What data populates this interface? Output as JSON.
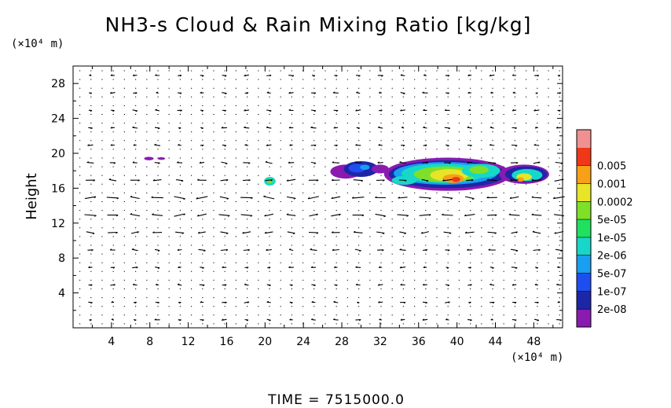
{
  "chart_data": {
    "type": "heatmap",
    "title": "NH3-s Cloud & Rain Mixing Ratio [kg/kg]",
    "ylabel": "Height",
    "xunit": "(×10⁴ m)",
    "yunit": "(×10⁴ m)",
    "time_label": "TIME = 7515000.0",
    "xlim": [
      0,
      51
    ],
    "ylim": [
      0,
      30
    ],
    "xticks": [
      4,
      8,
      12,
      16,
      20,
      24,
      28,
      32,
      36,
      40,
      44,
      48
    ],
    "yticks": [
      4,
      8,
      12,
      16,
      20,
      24,
      28
    ],
    "colorbar": {
      "colors": [
        "#8a1bb0",
        "#1e26a8",
        "#1f4ef0",
        "#1a9ef0",
        "#17d8c8",
        "#20e060",
        "#7ee028",
        "#e8e428",
        "#f8a018",
        "#f03818",
        "#f09090"
      ],
      "labels": [
        "2e-08",
        "1e-07",
        "5e-07",
        "2e-06",
        "1e-05",
        "5e-05",
        "0.0002",
        "0.001",
        "0.005"
      ]
    },
    "regions": [
      {
        "x": 28.4,
        "y": 17.9,
        "rx": 1.6,
        "ry": 0.8,
        "level": 0
      },
      {
        "x": 30.0,
        "y": 18.2,
        "rx": 1.8,
        "ry": 0.9,
        "level": 1
      },
      {
        "x": 29.6,
        "y": 18.3,
        "rx": 0.9,
        "ry": 0.5,
        "level": 2
      },
      {
        "x": 30.4,
        "y": 18.4,
        "rx": 0.5,
        "ry": 0.3,
        "level": 3
      },
      {
        "x": 32.0,
        "y": 18.2,
        "rx": 0.9,
        "ry": 0.5,
        "level": 0
      },
      {
        "x": 7.9,
        "y": 19.4,
        "rx": 0.5,
        "ry": 0.2,
        "level": 0
      },
      {
        "x": 9.2,
        "y": 19.4,
        "rx": 0.4,
        "ry": 0.15,
        "level": 0
      },
      {
        "x": 20.5,
        "y": 16.8,
        "rx": 0.6,
        "ry": 0.5,
        "level": 4
      },
      {
        "x": 20.5,
        "y": 16.8,
        "rx": 0.3,
        "ry": 0.25,
        "level": 6
      },
      {
        "x": 39.0,
        "y": 17.6,
        "rx": 6.6,
        "ry": 1.9,
        "level": 0
      },
      {
        "x": 39.0,
        "y": 17.6,
        "rx": 6.1,
        "ry": 1.6,
        "level": 1
      },
      {
        "x": 38.8,
        "y": 17.7,
        "rx": 5.4,
        "ry": 1.3,
        "level": 3
      },
      {
        "x": 38.6,
        "y": 17.7,
        "rx": 4.4,
        "ry": 1.1,
        "level": 4
      },
      {
        "x": 38.8,
        "y": 17.6,
        "rx": 3.3,
        "ry": 0.9,
        "level": 6
      },
      {
        "x": 39.2,
        "y": 17.5,
        "rx": 2.0,
        "ry": 0.7,
        "level": 7
      },
      {
        "x": 39.6,
        "y": 17.1,
        "rx": 1.1,
        "ry": 0.5,
        "level": 8
      },
      {
        "x": 39.9,
        "y": 17.0,
        "rx": 0.45,
        "ry": 0.3,
        "level": 9
      },
      {
        "x": 34.5,
        "y": 16.9,
        "rx": 1.3,
        "ry": 0.5,
        "level": 4
      },
      {
        "x": 42.5,
        "y": 18.0,
        "rx": 2.0,
        "ry": 0.8,
        "level": 4
      },
      {
        "x": 42.3,
        "y": 18.1,
        "rx": 1.0,
        "ry": 0.45,
        "level": 6
      },
      {
        "x": 47.0,
        "y": 17.6,
        "rx": 2.6,
        "ry": 1.1,
        "level": 0
      },
      {
        "x": 47.2,
        "y": 17.6,
        "rx": 2.2,
        "ry": 0.9,
        "level": 1
      },
      {
        "x": 47.3,
        "y": 17.5,
        "rx": 1.6,
        "ry": 0.7,
        "level": 4
      },
      {
        "x": 47.0,
        "y": 17.3,
        "rx": 0.8,
        "ry": 0.4,
        "level": 7
      },
      {
        "x": 46.6,
        "y": 17.0,
        "rx": 0.4,
        "ry": 0.25,
        "level": 8
      }
    ]
  }
}
